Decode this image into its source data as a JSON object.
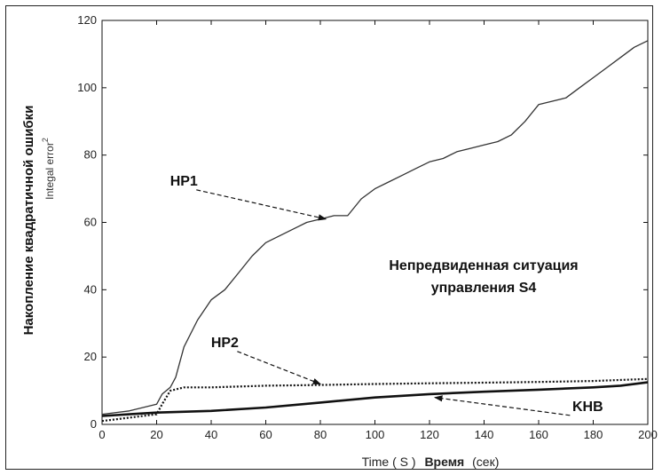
{
  "chart_data": {
    "type": "line",
    "title": "",
    "xlim": [
      0,
      200
    ],
    "ylim": [
      0,
      120
    ],
    "xticks": [
      0,
      20,
      40,
      60,
      80,
      100,
      120,
      140,
      160,
      180,
      200
    ],
    "yticks": [
      0,
      20,
      40,
      60,
      80,
      100,
      120
    ],
    "xlabel_en": "Time ( S )",
    "xlabel_ru": "Время",
    "xlabel_ru_unit": "(сек)",
    "ylabel_ru": "Накопление квадратичной ошибки",
    "ylabel_en": "Integal error",
    "ylabel_en_sup": "2",
    "grid": false,
    "annotation_line1": "Непредвиденная ситуация",
    "annotation_line2": "управления S4",
    "series": [
      {
        "name": "HP1",
        "style": "solid-thin",
        "x": [
          0,
          10,
          20,
          22,
          25,
          27,
          30,
          35,
          40,
          45,
          50,
          55,
          60,
          65,
          70,
          75,
          80,
          85,
          90,
          95,
          100,
          105,
          110,
          115,
          120,
          125,
          130,
          135,
          140,
          145,
          150,
          155,
          160,
          165,
          170,
          175,
          180,
          185,
          190,
          195,
          200
        ],
        "y": [
          3,
          4,
          6,
          9,
          11,
          14,
          23,
          31,
          37,
          40,
          45,
          50,
          54,
          56,
          58,
          60,
          61,
          62,
          62,
          67,
          70,
          72,
          74,
          76,
          78,
          79,
          81,
          82,
          83,
          84,
          86,
          90,
          95,
          96,
          97,
          100,
          103,
          106,
          109,
          112,
          114
        ]
      },
      {
        "name": "HP2",
        "style": "dotted",
        "x": [
          0,
          10,
          20,
          22,
          25,
          30,
          40,
          60,
          80,
          100,
          120,
          140,
          160,
          180,
          200
        ],
        "y": [
          1,
          2,
          3,
          6,
          10,
          11,
          11,
          11.5,
          11.7,
          12,
          12.2,
          12.4,
          12.6,
          12.9,
          13.5
        ]
      },
      {
        "name": "KHB",
        "style": "solid-thick",
        "x": [
          0,
          10,
          20,
          40,
          60,
          80,
          100,
          120,
          140,
          160,
          180,
          190,
          200
        ],
        "y": [
          2.5,
          3,
          3.5,
          4,
          5,
          6.5,
          8,
          9,
          9.7,
          10.3,
          11,
          11.5,
          12.5
        ]
      }
    ],
    "callouts": [
      {
        "label": "HP1",
        "tx": 30,
        "ty": 71,
        "ax": 82,
        "ay": 61
      },
      {
        "label": "HP2",
        "tx": 45,
        "ty": 23,
        "ax": 80,
        "ay": 12
      },
      {
        "label": "KHB",
        "tx": 178,
        "ty": 4,
        "ax": 122,
        "ay": 8
      }
    ]
  }
}
